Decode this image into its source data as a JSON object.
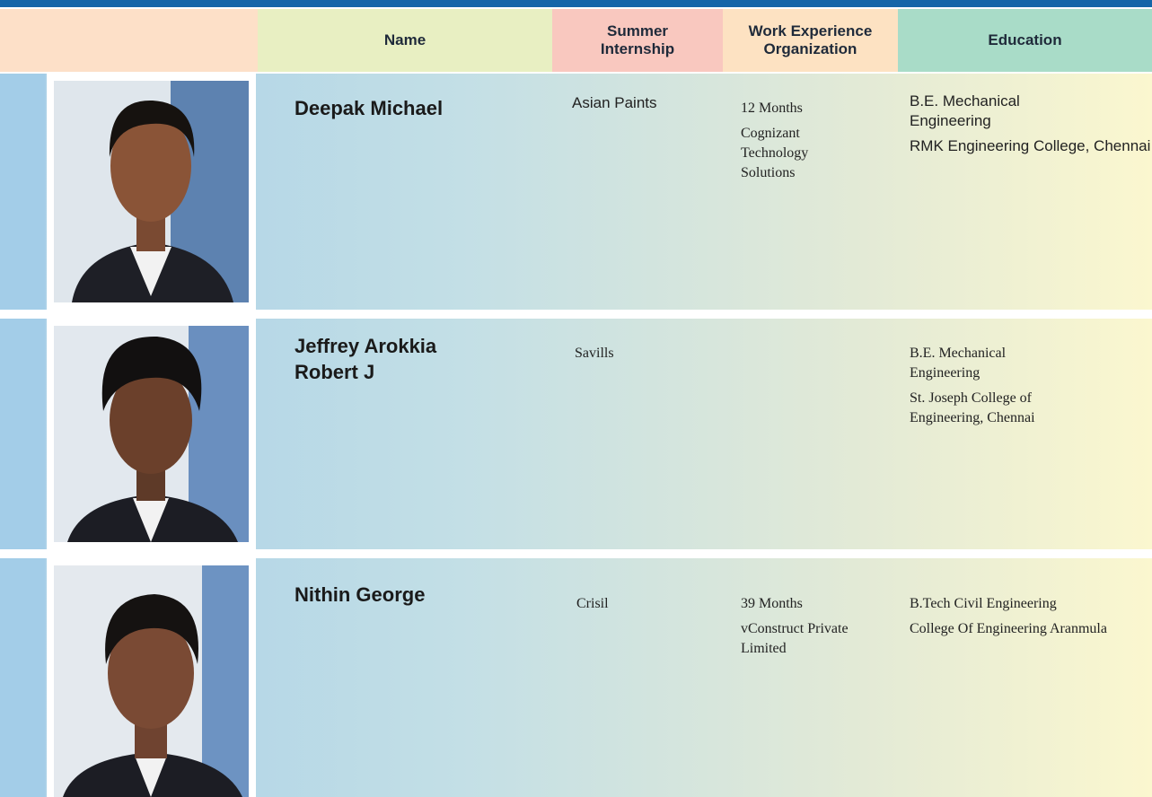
{
  "header": {
    "columns": [
      "Name",
      "Summer Internship",
      "Work Experience Organization",
      "Education"
    ]
  },
  "rows": [
    {
      "name": "Deepak Michael",
      "internship": "Asian Paints",
      "experience": [
        "12 Months",
        "Cognizant Technology Solutions"
      ],
      "education": [
        "B.E. Mechanical Engineering",
        "RMK Engineering College, Chennai"
      ]
    },
    {
      "name": "Jeffrey Arokkia Robert J",
      "internship": "Savills",
      "education": [
        "B.E. Mechanical Engineering",
        "St. Joseph College of Engineering, Chennai"
      ]
    },
    {
      "name": "Nithin George",
      "internship": "Crisil",
      "experience": [
        "39 Months",
        "vConstruct Private Limited"
      ],
      "education": [
        "B.Tech Civil Engineering",
        "College Of Engineering Aranmula"
      ]
    }
  ]
}
